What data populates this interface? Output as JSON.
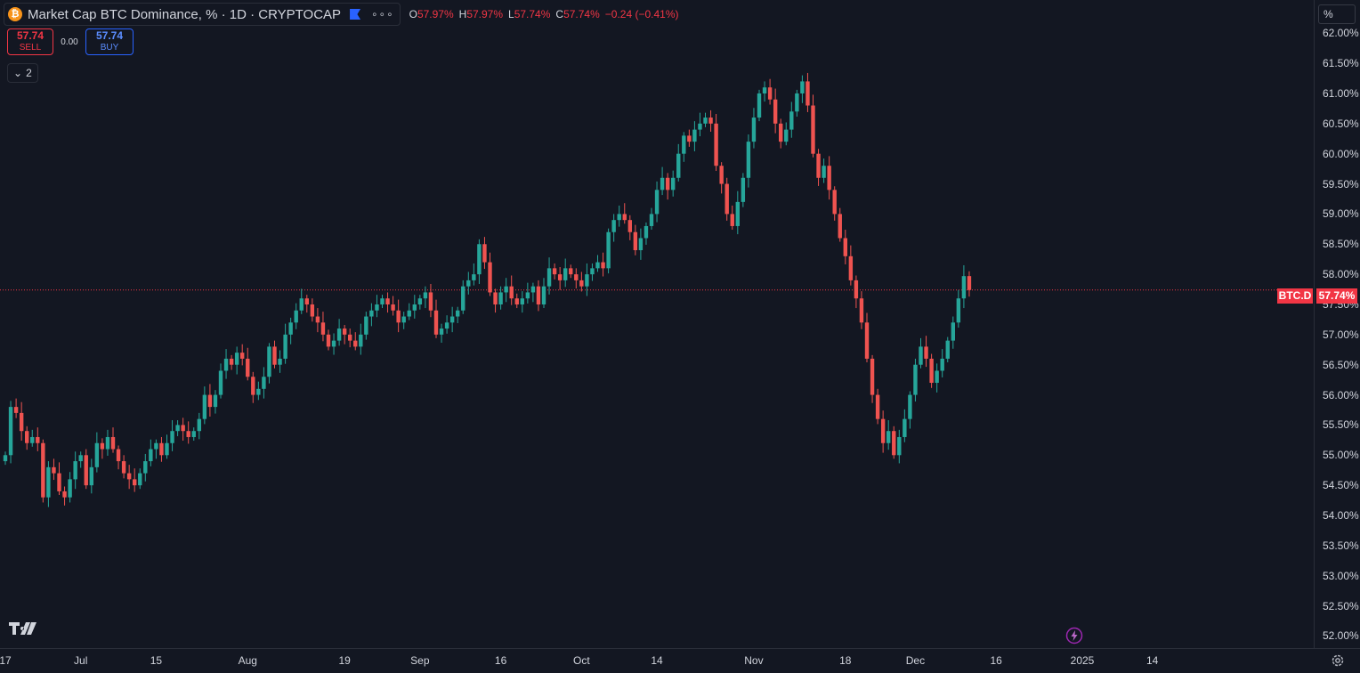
{
  "legend": {
    "title": "Market Cap BTC Dominance, % · 1D · CRYPTOCAP",
    "icon": "btc-icon",
    "ohlc": [
      {
        "k": "O",
        "v": "57.97%"
      },
      {
        "k": "H",
        "v": "57.97%"
      },
      {
        "k": "L",
        "v": "57.74%"
      },
      {
        "k": "C",
        "v": "57.74%"
      },
      {
        "k": "",
        "v": "−0.24 (−0.41%)"
      }
    ]
  },
  "trade": {
    "sell_price": "57.74",
    "sell_label": "SELL",
    "spread": "0.00",
    "buy_price": "57.74",
    "buy_label": "BUY"
  },
  "collapse_count": "2",
  "scale_mode": "%",
  "price_label": {
    "name": "BTC.D",
    "value": "57.74%"
  },
  "colors": {
    "up": "#26a69a",
    "down": "#ef5350",
    "background": "#131722",
    "last_price": "#f23645"
  },
  "chart_data": {
    "type": "candlestick",
    "symbol": "BTC.D",
    "interval": "1D",
    "ylim": [
      51.8,
      62.55
    ],
    "y_ticks": [
      "62.00%",
      "61.50%",
      "61.00%",
      "60.50%",
      "60.00%",
      "59.50%",
      "59.00%",
      "58.50%",
      "58.00%",
      "57.50%",
      "57.00%",
      "56.50%",
      "56.00%",
      "55.50%",
      "55.00%",
      "54.50%",
      "54.00%",
      "53.50%",
      "53.00%",
      "52.50%",
      "52.00%"
    ],
    "x_ticks": [
      {
        "label": "17",
        "i": 0
      },
      {
        "label": "Jul",
        "i": 14
      },
      {
        "label": "15",
        "i": 28
      },
      {
        "label": "Aug",
        "i": 45
      },
      {
        "label": "19",
        "i": 63
      },
      {
        "label": "Sep",
        "i": 77
      },
      {
        "label": "16",
        "i": 92
      },
      {
        "label": "Oct",
        "i": 107
      },
      {
        "label": "14",
        "i": 121
      },
      {
        "label": "Nov",
        "i": 139
      },
      {
        "label": "18",
        "i": 156
      },
      {
        "label": "Dec",
        "i": 169
      },
      {
        "label": "16",
        "i": 184
      },
      {
        "label": "2025",
        "i": 200
      },
      {
        "label": "14",
        "i": 213
      }
    ],
    "last_price": 57.74,
    "closes": [
      55.0,
      55.8,
      55.7,
      55.4,
      55.2,
      55.3,
      55.2,
      54.3,
      54.8,
      54.7,
      54.4,
      54.3,
      54.6,
      54.9,
      55.0,
      54.5,
      54.8,
      55.2,
      55.1,
      55.3,
      55.1,
      54.9,
      54.7,
      54.6,
      54.5,
      54.7,
      54.9,
      55.1,
      55.2,
      55.0,
      55.2,
      55.4,
      55.5,
      55.4,
      55.3,
      55.4,
      55.6,
      56.0,
      55.8,
      56.0,
      56.4,
      56.6,
      56.5,
      56.7,
      56.6,
      56.3,
      56.0,
      56.1,
      56.3,
      56.8,
      56.5,
      56.6,
      57.0,
      57.2,
      57.4,
      57.6,
      57.5,
      57.3,
      57.2,
      57.0,
      56.8,
      56.9,
      57.1,
      57.0,
      56.9,
      56.8,
      57.0,
      57.3,
      57.4,
      57.5,
      57.6,
      57.5,
      57.4,
      57.2,
      57.3,
      57.4,
      57.5,
      57.6,
      57.7,
      57.4,
      57.0,
      57.1,
      57.2,
      57.3,
      57.4,
      57.8,
      57.9,
      58.0,
      58.5,
      58.2,
      57.7,
      57.5,
      57.7,
      57.8,
      57.6,
      57.5,
      57.6,
      57.7,
      57.8,
      57.5,
      57.8,
      58.1,
      58.0,
      57.9,
      58.1,
      58.0,
      57.9,
      57.8,
      58.0,
      58.1,
      58.2,
      58.1,
      58.7,
      58.9,
      59.0,
      58.9,
      58.7,
      58.4,
      58.6,
      58.8,
      59.0,
      59.4,
      59.6,
      59.4,
      59.6,
      60.0,
      60.3,
      60.2,
      60.4,
      60.5,
      60.6,
      60.5,
      59.8,
      59.5,
      59.0,
      58.8,
      59.2,
      59.6,
      60.2,
      60.6,
      61.0,
      61.1,
      60.9,
      60.5,
      60.2,
      60.4,
      60.7,
      61.0,
      61.2,
      60.8,
      60.0,
      59.6,
      59.8,
      59.4,
      59.0,
      58.6,
      58.3,
      57.9,
      57.6,
      57.2,
      56.6,
      56.0,
      55.6,
      55.2,
      55.4,
      55.0,
      55.3,
      55.6,
      56.0,
      56.5,
      56.8,
      56.6,
      56.2,
      56.4,
      56.6,
      56.9,
      57.2,
      57.6,
      57.97,
      57.74
    ]
  }
}
